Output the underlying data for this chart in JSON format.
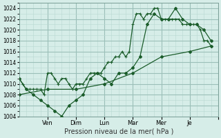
{
  "xlabel": "Pression niveau de la mer( hPa )",
  "bg_color": "#d6ede8",
  "grid_major_color": "#9bbfb8",
  "grid_minor_color": "#b8d8d2",
  "line_color": "#1a5c2a",
  "ylim": [
    1004,
    1025
  ],
  "yticks": [
    1004,
    1006,
    1008,
    1010,
    1012,
    1014,
    1016,
    1018,
    1020,
    1022,
    1024
  ],
  "xmax": 28,
  "xtick_positions": [
    4,
    8,
    12,
    16,
    20,
    24,
    28
  ],
  "xtick_texts": [
    "Ven",
    "Dim",
    "Lun",
    "Mar",
    "Mer",
    "Je",
    ""
  ],
  "series1_x": [
    0,
    0.5,
    1,
    1.5,
    2,
    2.5,
    3,
    3.5,
    4,
    4.5,
    5,
    5.5,
    6,
    6.5,
    7,
    7.5,
    8,
    8.5,
    9,
    9.5,
    10,
    10.5,
    11,
    11.5,
    12,
    12.5,
    13,
    13.5,
    14,
    14.5,
    15,
    15.5,
    16,
    16.5,
    17,
    17.5,
    18,
    18.5,
    19,
    19.5,
    20,
    20.5,
    21,
    21.5,
    22,
    22.5,
    23,
    23.5,
    24,
    24.5,
    25,
    25.5,
    26,
    26.5,
    27
  ],
  "series1_y": [
    1011,
    1010,
    1009,
    1009,
    1009,
    1009,
    1009,
    1008,
    1012,
    1012,
    1011,
    1010,
    1011,
    1011,
    1010,
    1009,
    1010,
    1010,
    1010,
    1011,
    1012,
    1012,
    1012,
    1012,
    1013,
    1014,
    1014,
    1015,
    1015,
    1016,
    1015,
    1016,
    1021,
    1023,
    1023,
    1022,
    1023,
    1023,
    1024,
    1024,
    1022,
    1022,
    1022,
    1022,
    1022,
    1022,
    1021,
    1021,
    1021,
    1021,
    1021,
    1020,
    1018,
    1018,
    1017
  ],
  "series2_x": [
    0,
    1,
    2,
    3,
    4,
    5,
    6,
    7,
    8,
    9,
    10,
    11,
    12,
    13,
    14,
    15,
    16,
    17,
    18,
    19,
    20,
    21,
    22,
    23,
    24,
    25,
    26,
    27
  ],
  "series2_y": [
    1011,
    1009,
    1008,
    1007,
    1006,
    1005,
    1004,
    1006,
    1007,
    1008,
    1011,
    1012,
    1011,
    1010,
    1012,
    1012,
    1013,
    1015,
    1021,
    1023,
    1022,
    1022,
    1024,
    1022,
    1021,
    1021,
    1020,
    1018
  ],
  "series3_x": [
    0,
    4,
    8,
    12,
    16,
    20,
    24,
    27
  ],
  "series3_y": [
    1008,
    1009,
    1009,
    1010,
    1012,
    1015,
    1016,
    1017
  ]
}
